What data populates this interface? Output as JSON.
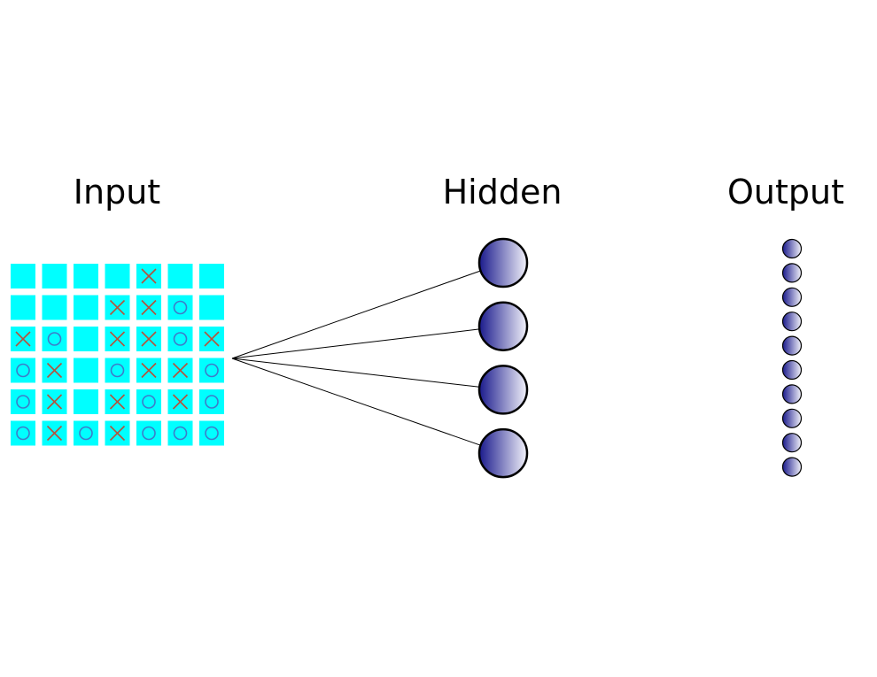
{
  "labels": {
    "input": "Input",
    "hidden": "Hidden",
    "output": "Output"
  },
  "board": {
    "rows": [
      [
        "",
        "",
        "",
        "",
        "X",
        "",
        ""
      ],
      [
        "",
        "",
        "",
        "X",
        "X",
        "O",
        ""
      ],
      [
        "X",
        "O",
        "",
        "X",
        "X",
        "O",
        "X"
      ],
      [
        "O",
        "X",
        "",
        "O",
        "X",
        "X",
        "O"
      ],
      [
        "O",
        "X",
        "",
        "X",
        "O",
        "X",
        "O"
      ],
      [
        "O",
        "X",
        "O",
        "X",
        "O",
        "O",
        "O"
      ]
    ]
  },
  "hidden_node_count": 4,
  "output_node_count": 10,
  "colors": {
    "cell": "#00ffff",
    "mark_x": "#b5523b",
    "mark_o": "#3d7cc9",
    "node_dark": "#1a1a8c",
    "node_light": "#f2f2fa",
    "edge": "#000000"
  }
}
